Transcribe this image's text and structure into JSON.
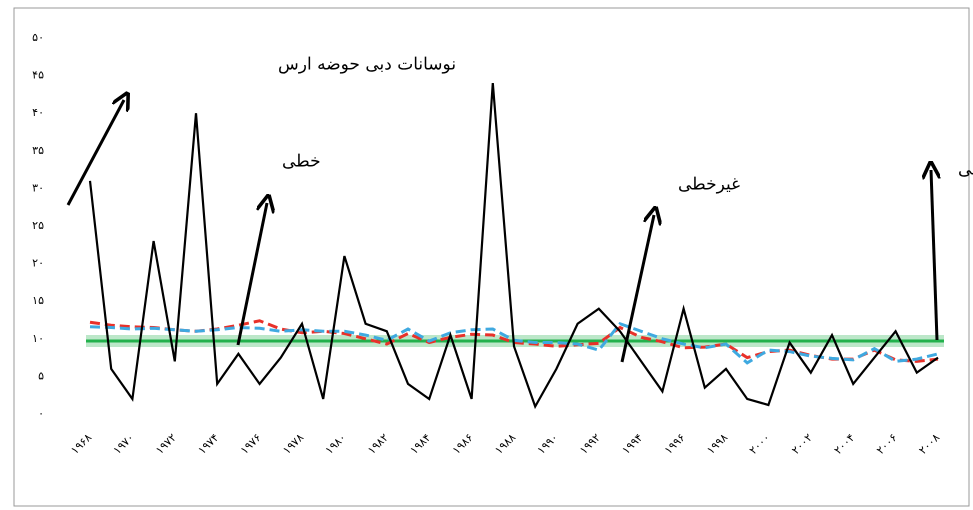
{
  "chart_data": {
    "type": "line",
    "annotations": [
      "نوسانات دبی حوضه ارس",
      "خطی",
      "غیرخطی",
      "میانگین بلندمدت دبی"
    ],
    "categories": [
      "۱۹۶۸",
      null,
      "۱۹۷۰",
      null,
      "۱۹۷۲",
      null,
      "۱۹۷۴",
      null,
      "۱۹۷۶",
      null,
      "۱۹۷۸",
      null,
      "۱۹۸۰",
      null,
      "۱۹۸۲",
      null,
      "۱۹۸۴",
      null,
      "۱۹۸۶",
      null,
      "۱۹۸۸",
      null,
      "۱۹۹۰",
      null,
      "۱۹۹۲",
      null,
      "۱۹۹۴",
      null,
      "۱۹۹۶",
      null,
      "۱۹۹۸",
      null,
      "۲۰۰۰",
      null,
      "۲۰۰۲",
      null,
      "۲۰۰۴",
      null,
      "۲۰۰۶",
      null,
      "۲۰۰۸"
    ],
    "series": [
      {
        "color": "#000000",
        "dash": "solid",
        "values": [
          31,
          6,
          2,
          23,
          7,
          40,
          4,
          8,
          4,
          7.5,
          12,
          2,
          21,
          12,
          11,
          4,
          2,
          10.5,
          2,
          44,
          9,
          1,
          6,
          12,
          14,
          11,
          7,
          3,
          14,
          3.5,
          6,
          2,
          1.2,
          9.5,
          5.5,
          10.5,
          4,
          7.5,
          11,
          5.5,
          7.5
        ]
      },
      {
        "color": "#e8312a",
        "dash": "dashed",
        "values": [
          12.2,
          11.8,
          11.6,
          11.5,
          11.2,
          11.0,
          11.3,
          11.8,
          12.4,
          11.3,
          10.8,
          11,
          10.7,
          10,
          9.3,
          10.7,
          9.5,
          10.2,
          10.6,
          10.5,
          9.5,
          9.3,
          9,
          9.2,
          9.4,
          11.5,
          10.2,
          9.6,
          8.8,
          8.9,
          9.3,
          7.5,
          8.3,
          8.5,
          7.8,
          7.3,
          7.3,
          8.5,
          7.2,
          7.0,
          7.3
        ]
      },
      {
        "color": "#3fa9e0",
        "dash": "dashed",
        "values": [
          11.6,
          11.5,
          11.3,
          11.4,
          11.2,
          11.0,
          11.2,
          11.5,
          11.4,
          11.0,
          11.2,
          11,
          11,
          10.5,
          9.8,
          11.3,
          9.7,
          10.8,
          11.2,
          11.3,
          9.8,
          9.5,
          9.5,
          9.3,
          8.5,
          12,
          11,
          10,
          9.3,
          8.8,
          9.3,
          6.8,
          8.5,
          8.3,
          7.7,
          7.4,
          7.2,
          8.7,
          7,
          7.3,
          8
        ]
      }
    ],
    "reference_line": {
      "value": 9.7,
      "color": "#22b14c"
    },
    "ylim": [
      0,
      50
    ],
    "yticks": [
      {
        "value": 0,
        "label": "۰"
      },
      {
        "value": 5,
        "label": "۵"
      },
      {
        "value": 10,
        "label": "۱۰"
      },
      {
        "value": 15,
        "label": "۱۵"
      },
      {
        "value": 20,
        "label": "۲۰"
      },
      {
        "value": 25,
        "label": "۲۵"
      },
      {
        "value": 30,
        "label": "۳۰"
      },
      {
        "value": 35,
        "label": "۳۵"
      },
      {
        "value": 40,
        "label": "۴۰"
      },
      {
        "value": 45,
        "label": "۴۵"
      },
      {
        "value": 50,
        "label": "۵۰"
      }
    ],
    "grid": false
  }
}
